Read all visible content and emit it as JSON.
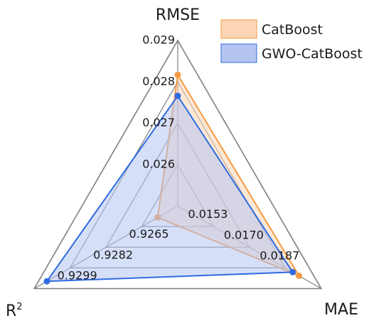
{
  "chart_data": {
    "type": "radar",
    "title": "",
    "axes": [
      {
        "name": "RMSE",
        "label_text": "RMSE",
        "min": 0.025,
        "max": 0.029,
        "ticks": [
          "0.026",
          "0.027",
          "0.028",
          "0.029"
        ],
        "tick_values": [
          0.026,
          0.027,
          0.028,
          0.029
        ]
      },
      {
        "name": "MAE",
        "label_text": "MAE",
        "min": 0.0136,
        "max": 0.0204,
        "ticks": [
          "0.0153",
          "0.0170",
          "0.0187"
        ],
        "tick_values": [
          0.0153,
          0.017,
          0.0187
        ]
      },
      {
        "name": "R2",
        "label_main": "R",
        "label_sup": "2",
        "min": 0.9248,
        "max": 0.9316,
        "ticks": [
          "0.9265",
          "0.9282",
          "0.9299"
        ],
        "tick_values": [
          0.9265,
          0.9282,
          0.9299
        ]
      }
    ],
    "series": [
      {
        "name": "CatBoost",
        "color": "#f59a44",
        "fill": "#fbd5b5",
        "values": {
          "RMSE": 0.02817,
          "MAE": 0.01935,
          "R2": 0.92575
        }
      },
      {
        "name": "GWO-CatBoost",
        "color": "#2f6be0",
        "fill": "#b5c5f2",
        "values": {
          "RMSE": 0.02766,
          "MAE": 0.01905,
          "R2": 0.931
        }
      }
    ],
    "grid_levels": 4,
    "legend_position": "top-right"
  }
}
